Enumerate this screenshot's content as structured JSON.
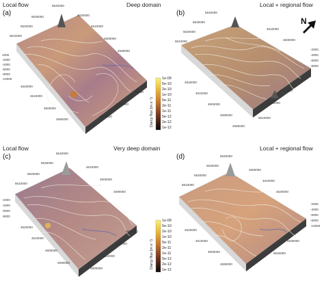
{
  "panels": [
    {
      "letter": "(a)",
      "flow_label": "Local flow",
      "domain_label": "Deep domain",
      "ticks": [
        "5640000",
        "5630000",
        "5620000",
        "5610000",
        "4620000",
        "4610000",
        "4600000",
        "4590000",
        "4620000",
        "4610000",
        "4600000",
        "4590000",
        "5620000",
        "5630000",
        "5640000",
        "1000",
        "-2000",
        "-4000",
        "-6000",
        "-8000",
        "-10000"
      ]
    },
    {
      "letter": "(b)",
      "flow_label": "Local + regional flow",
      "domain_label": "",
      "ticks": [
        "5640000",
        "5630000",
        "5620000",
        "5610000",
        "4620000",
        "4610000",
        "4600000",
        "4590000",
        "4580000",
        "4610000",
        "4600000",
        "5630000",
        "5620000",
        "5610000",
        "-2000",
        "-4000",
        "-6000",
        "-8000"
      ]
    },
    {
      "letter": "(c)",
      "flow_label": "Local flow",
      "domain_label": "Very deep domain",
      "ticks": [
        "5640000",
        "5630000",
        "5620000",
        "5610000",
        "4620000",
        "4610000",
        "4600000",
        "4590000",
        "4610000",
        "4600000",
        "4590000",
        "5630000",
        "5620000",
        "5610000",
        "5600000",
        "-2000",
        "-4000",
        "-6000",
        "-8000"
      ]
    },
    {
      "letter": "(d)",
      "flow_label": "Local + regional flow",
      "domain_label": "",
      "ticks": [
        "5640000",
        "5630000",
        "5620000",
        "5610000",
        "4620000",
        "4610000",
        "4600000",
        "4590000",
        "4600000",
        "4610000",
        "4620000",
        "5630000",
        "5640000",
        "-2000",
        "-4000",
        "-6000",
        "-8000",
        "-10000"
      ]
    }
  ],
  "north": "N",
  "colorbar": {
    "title": "Darcy flux (m s⁻¹)",
    "ticks": [
      "1e-09",
      "5e-10",
      "2e-10",
      "1e-10",
      "5e-11",
      "2e-11",
      "1e-11",
      "5e-12",
      "2e-12",
      "1e-12"
    ],
    "colors": [
      "#fbf27a",
      "#f4d24e",
      "#e9ae36",
      "#d98a2c",
      "#c06a2a",
      "#9c4e25",
      "#7a381f",
      "#571f17",
      "#32100e",
      "#0a0a0a"
    ]
  },
  "colors": {
    "surface_warm": "#c9906f",
    "surface_purple": "#8a6a8c",
    "base": "#3a3a3a",
    "streamline": "#f1ece0"
  }
}
